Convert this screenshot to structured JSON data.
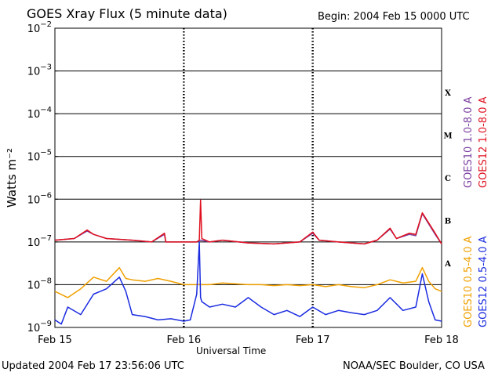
{
  "header": {
    "title": "GOES Xray Flux (5 minute data)",
    "begin": "Begin:  2004 Feb 15 0000 UTC"
  },
  "footer": {
    "updated": "Updated 2004 Feb 17 23:56:06 UTC",
    "credit": "NOAA/SEC Boulder, CO USA"
  },
  "legend": {
    "goes10_long": "GOES10 1.0-8.0 A",
    "goes12_long": "GOES12 1.0-8.0 A",
    "goes10_short": "GOES10 0.5-4.0 A",
    "goes12_short": "GOES12 0.5-4.0 A"
  },
  "colors": {
    "goes10_long": "#7a3fa0",
    "goes12_long": "#e0101e",
    "goes10_short": "#f0a000",
    "goes12_short": "#1a2be0"
  },
  "chart_data": {
    "type": "line",
    "title": "GOES Xray Flux (5 minute data)",
    "xlabel": "Universal Time",
    "ylabel": "Watts m⁻²",
    "yscale": "log",
    "ylim": [
      1e-09,
      0.01
    ],
    "xlim": [
      0,
      3
    ],
    "x_ticks": [
      "Feb 15",
      "Feb 16",
      "Feb 17",
      "Feb 18"
    ],
    "y_ticks": [
      {
        "mant": "10",
        "exp": "−2"
      },
      {
        "mant": "10",
        "exp": "−3"
      },
      {
        "mant": "10",
        "exp": "−4"
      },
      {
        "mant": "10",
        "exp": "−5"
      },
      {
        "mant": "10",
        "exp": "−6"
      },
      {
        "mant": "10",
        "exp": "−7"
      },
      {
        "mant": "10",
        "exp": "−8"
      },
      {
        "mant": "10",
        "exp": "−9"
      }
    ],
    "flare_classes": [
      "X",
      "M",
      "C",
      "B",
      "A"
    ],
    "grid": true,
    "series": [
      {
        "name": "GOES10 1.0-8.0 A",
        "color": "#7a3fa0",
        "x": [
          0,
          0.15,
          0.25,
          0.3,
          0.4,
          0.6,
          0.75,
          0.85,
          0.86,
          0.88,
          1.0,
          1.1,
          1.13,
          1.2,
          1.3,
          1.5,
          1.7,
          1.9,
          2.0,
          2.05,
          2.2,
          2.4,
          2.5,
          2.6,
          2.65,
          2.75,
          2.8,
          2.85,
          2.95,
          3.0
        ],
        "y": [
          1.1e-07,
          1.2e-07,
          1.8e-07,
          1.5e-07,
          1.2e-07,
          1.1e-07,
          1e-07,
          1.5e-07,
          1e-07,
          1e-07,
          1e-07,
          1e-07,
          1.1e-07,
          1e-07,
          1.1e-07,
          9.5e-08,
          9e-08,
          1e-07,
          1.6e-07,
          1.1e-07,
          1e-07,
          9e-08,
          1.1e-07,
          2e-07,
          1.2e-07,
          1.5e-07,
          1.4e-07,
          4.6e-07,
          1.5e-07,
          9e-08
        ]
      },
      {
        "name": "GOES12 1.0-8.0 A",
        "color": "#e0101e",
        "x": [
          0,
          0.15,
          0.25,
          0.3,
          0.4,
          0.6,
          0.75,
          0.85,
          0.86,
          0.88,
          1.0,
          1.1,
          1.12,
          1.13,
          1.14,
          1.2,
          1.3,
          1.5,
          1.7,
          1.9,
          2.0,
          2.05,
          2.2,
          2.4,
          2.5,
          2.6,
          2.65,
          2.75,
          2.8,
          2.85,
          2.95,
          3.0
        ],
        "y": [
          1.1e-07,
          1.2e-07,
          1.9e-07,
          1.5e-07,
          1.2e-07,
          1.1e-07,
          1e-07,
          1.6e-07,
          1e-07,
          1e-07,
          1e-07,
          1e-07,
          1.1e-07,
          9.5e-07,
          1.2e-07,
          1e-07,
          1.1e-07,
          9.5e-08,
          9e-08,
          1e-07,
          1.7e-07,
          1.1e-07,
          1e-07,
          9e-08,
          1.1e-07,
          2.1e-07,
          1.2e-07,
          1.6e-07,
          1.5e-07,
          4.8e-07,
          1.6e-07,
          9e-08
        ]
      },
      {
        "name": "GOES10 0.5-4.0 A",
        "color": "#f0a000",
        "x": [
          0,
          0.1,
          0.2,
          0.3,
          0.4,
          0.5,
          0.55,
          0.6,
          0.7,
          0.8,
          0.9,
          1.0,
          1.12,
          1.2,
          1.3,
          1.5,
          1.6,
          1.7,
          1.8,
          1.9,
          2.0,
          2.1,
          2.2,
          2.3,
          2.4,
          2.5,
          2.6,
          2.7,
          2.8,
          2.85,
          2.9,
          2.95,
          3.0
        ],
        "y": [
          7e-09,
          5e-09,
          8e-09,
          1.5e-08,
          1.2e-08,
          2.5e-08,
          1.4e-08,
          1.3e-08,
          1.2e-08,
          1.4e-08,
          1.2e-08,
          1e-08,
          1e-08,
          1e-08,
          1.1e-08,
          1e-08,
          1e-08,
          9.5e-09,
          1e-08,
          9.5e-09,
          1e-08,
          9e-09,
          1e-08,
          9e-09,
          8.5e-09,
          1e-08,
          1.3e-08,
          1.1e-08,
          1.2e-08,
          2.5e-08,
          1.2e-08,
          8e-09,
          7e-09
        ]
      },
      {
        "name": "GOES12 0.5-4.0 A",
        "color": "#1a2be0",
        "x": [
          0,
          0.05,
          0.1,
          0.2,
          0.3,
          0.4,
          0.5,
          0.55,
          0.6,
          0.7,
          0.8,
          0.9,
          1.0,
          1.05,
          1.1,
          1.12,
          1.13,
          1.14,
          1.2,
          1.3,
          1.4,
          1.5,
          1.6,
          1.7,
          1.8,
          1.9,
          2.0,
          2.1,
          2.2,
          2.3,
          2.4,
          2.5,
          2.6,
          2.7,
          2.8,
          2.85,
          2.9,
          2.95,
          3.0
        ],
        "y": [
          1.5e-09,
          1.2e-09,
          3e-09,
          2e-09,
          6e-09,
          8e-09,
          1.5e-08,
          7e-09,
          2e-09,
          1.8e-09,
          1.5e-09,
          1.6e-09,
          1.4e-09,
          1.5e-09,
          6e-09,
          1e-07,
          5e-09,
          4e-09,
          3e-09,
          3.5e-09,
          3e-09,
          5e-09,
          3e-09,
          2e-09,
          2.5e-09,
          1.8e-09,
          3e-09,
          2e-09,
          2.5e-09,
          2.2e-09,
          2e-09,
          2.5e-09,
          5e-09,
          2.5e-09,
          3e-09,
          1.8e-08,
          4e-09,
          1.5e-09,
          1.4e-09
        ]
      }
    ]
  }
}
